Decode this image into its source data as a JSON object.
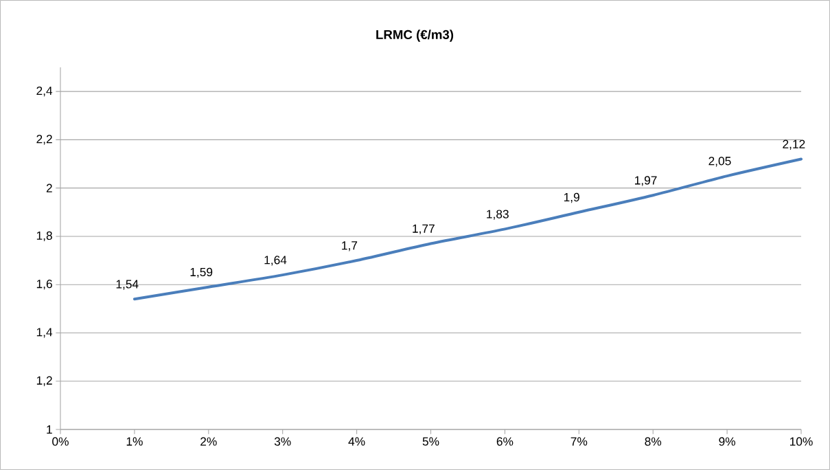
{
  "chart_data": {
    "type": "line",
    "title": "LRMC (€/m3)",
    "x": [
      1,
      2,
      3,
      4,
      5,
      6,
      7,
      8,
      9,
      10
    ],
    "series": [
      {
        "color": "#4a7ebb",
        "values": [
          1.54,
          1.59,
          1.64,
          1.7,
          1.77,
          1.83,
          1.9,
          1.97,
          2.05,
          2.12
        ],
        "value_labels": [
          "1,54",
          "1,59",
          "1,64",
          "1,7",
          "1,77",
          "1,83",
          "1,9",
          "1,97",
          "2,05",
          "2,12"
        ]
      }
    ],
    "xlim": [
      0,
      10
    ],
    "xticks": [
      {
        "value": 0,
        "label": "0%"
      },
      {
        "value": 1,
        "label": "1%"
      },
      {
        "value": 2,
        "label": "2%"
      },
      {
        "value": 3,
        "label": "3%"
      },
      {
        "value": 4,
        "label": "4%"
      },
      {
        "value": 5,
        "label": "5%"
      },
      {
        "value": 6,
        "label": "6%"
      },
      {
        "value": 7,
        "label": "7%"
      },
      {
        "value": 8,
        "label": "8%"
      },
      {
        "value": 9,
        "label": "9%"
      },
      {
        "value": 10,
        "label": "10%"
      }
    ],
    "ylim": [
      1,
      2.5
    ],
    "yticks": [
      1,
      {
        "value": 1.2,
        "label": "1,2"
      },
      {
        "value": 1.4,
        "label": "1,4"
      },
      {
        "value": 1.6,
        "label": "1,6"
      },
      {
        "value": 1.8,
        "label": "1,8"
      },
      2,
      {
        "value": 2.2,
        "label": "2,2"
      },
      {
        "value": 2.4,
        "label": "2,4"
      }
    ],
    "grid": "y",
    "marker": "none",
    "line_style": "solid"
  }
}
